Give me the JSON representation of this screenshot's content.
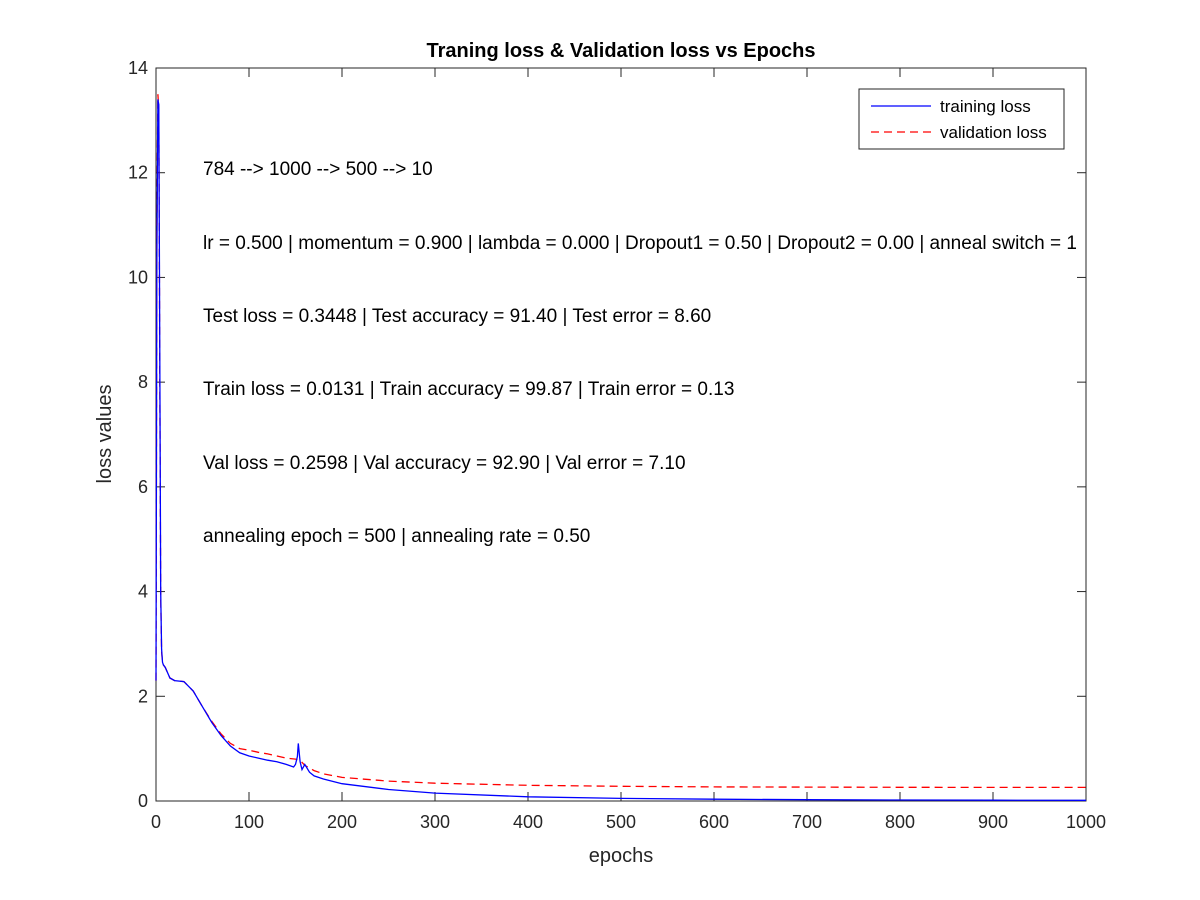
{
  "chart_data": {
    "type": "line",
    "title": "Traning loss & Validation loss vs Epochs",
    "xlabel": "epochs",
    "ylabel": "loss values",
    "xlim": [
      0,
      1000
    ],
    "ylim": [
      0,
      14
    ],
    "xticks": [
      0,
      100,
      200,
      300,
      400,
      500,
      600,
      700,
      800,
      900,
      1000
    ],
    "yticks": [
      0,
      2,
      4,
      6,
      8,
      10,
      12,
      14
    ],
    "grid": false,
    "legend_position": "top-right",
    "annotations": [
      "784 --> 1000 --> 500 --> 10",
      "lr = 0.500 | momentum = 0.900 | lambda = 0.000 | Dropout1 = 0.50 | Dropout2 = 0.00 | anneal switch = 1",
      "Test loss = 0.3448 | Test accuracy = 91.40 | Test error = 8.60",
      "Train loss = 0.0131 | Train accuracy = 99.87 | Train error = 0.13",
      "Val loss = 0.2598 | Val accuracy = 92.90 | Val error = 7.10",
      "annealing epoch = 500 | annealing rate = 0.50"
    ],
    "series": [
      {
        "name": "training loss",
        "color": "#0000ff",
        "style": "solid",
        "x": [
          0,
          1,
          2,
          3,
          4,
          5,
          6,
          7,
          8,
          10,
          15,
          20,
          30,
          40,
          50,
          60,
          70,
          80,
          90,
          100,
          110,
          120,
          130,
          140,
          148,
          150,
          152,
          153,
          155,
          157,
          160,
          165,
          170,
          180,
          200,
          250,
          300,
          400,
          500,
          600,
          700,
          800,
          900,
          1000
        ],
        "y": [
          2.3,
          10.5,
          13.4,
          13.3,
          9.0,
          4.0,
          2.9,
          2.65,
          2.6,
          2.55,
          2.35,
          2.3,
          2.28,
          2.1,
          1.8,
          1.5,
          1.25,
          1.05,
          0.92,
          0.86,
          0.82,
          0.78,
          0.75,
          0.7,
          0.65,
          0.7,
          0.85,
          1.1,
          0.75,
          0.6,
          0.7,
          0.55,
          0.48,
          0.42,
          0.33,
          0.22,
          0.15,
          0.08,
          0.05,
          0.035,
          0.025,
          0.02,
          0.016,
          0.013
        ]
      },
      {
        "name": "validation loss",
        "color": "#ff0000",
        "style": "dashed",
        "x": [
          0,
          1,
          2,
          3,
          4,
          5,
          6,
          7,
          8,
          10,
          15,
          20,
          30,
          40,
          50,
          60,
          70,
          80,
          90,
          100,
          110,
          120,
          130,
          140,
          150,
          155,
          160,
          170,
          180,
          200,
          250,
          300,
          400,
          500,
          600,
          700,
          800,
          900,
          1000
        ],
        "y": [
          2.3,
          11.0,
          13.5,
          13.2,
          8.5,
          3.9,
          2.85,
          2.65,
          2.6,
          2.55,
          2.35,
          2.3,
          2.28,
          2.1,
          1.8,
          1.52,
          1.28,
          1.1,
          1.0,
          0.97,
          0.93,
          0.9,
          0.86,
          0.82,
          0.8,
          0.78,
          0.68,
          0.58,
          0.52,
          0.45,
          0.38,
          0.34,
          0.3,
          0.28,
          0.27,
          0.265,
          0.262,
          0.26,
          0.26
        ]
      }
    ]
  }
}
